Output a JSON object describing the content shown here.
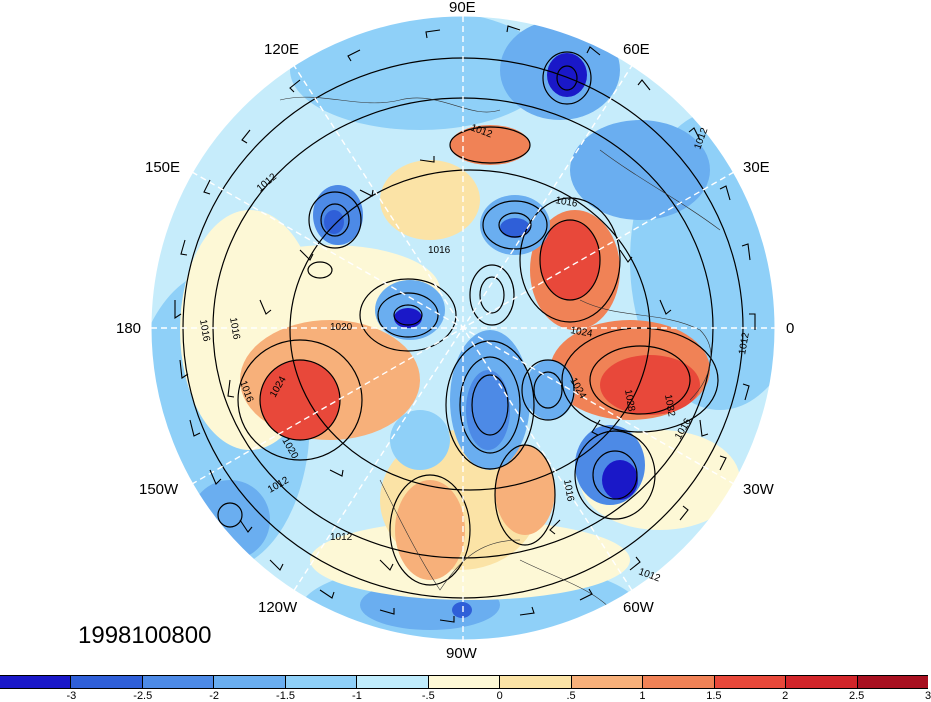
{
  "lon_labels": {
    "e90": "90E",
    "e60": "60E",
    "e30": "30E",
    "zero": "0",
    "w30": "30W",
    "w60": "60W",
    "w90": "90W",
    "w120": "120W",
    "w150": "150W",
    "d180": "180",
    "e150": "150E",
    "e120": "120E"
  },
  "date": "1998100800",
  "colorbar": {
    "colors": [
      "#1a18c8",
      "#2f5fd8",
      "#4d8ae6",
      "#6aaef0",
      "#8fd0f8",
      "#c0ecfc",
      "#fdf8d6",
      "#fbe3a6",
      "#f7b07a",
      "#f08256",
      "#e8483a",
      "#d2252a",
      "#a81020"
    ],
    "ticks": [
      "-3",
      "-2.5",
      "-2",
      "-1.5",
      "-1",
      "-.5",
      "0",
      ".5",
      "1",
      "1.5",
      "2",
      "2.5",
      "3"
    ]
  },
  "contour_labels": [
    "1012",
    "1012",
    "1016",
    "1012",
    "1016",
    "1020",
    "1024",
    "1028",
    "1032",
    "1016",
    "1016",
    "1012",
    "1016",
    "1020",
    "1024",
    "1016",
    "1016",
    "1012",
    "1012",
    "1012",
    "1024"
  ]
}
